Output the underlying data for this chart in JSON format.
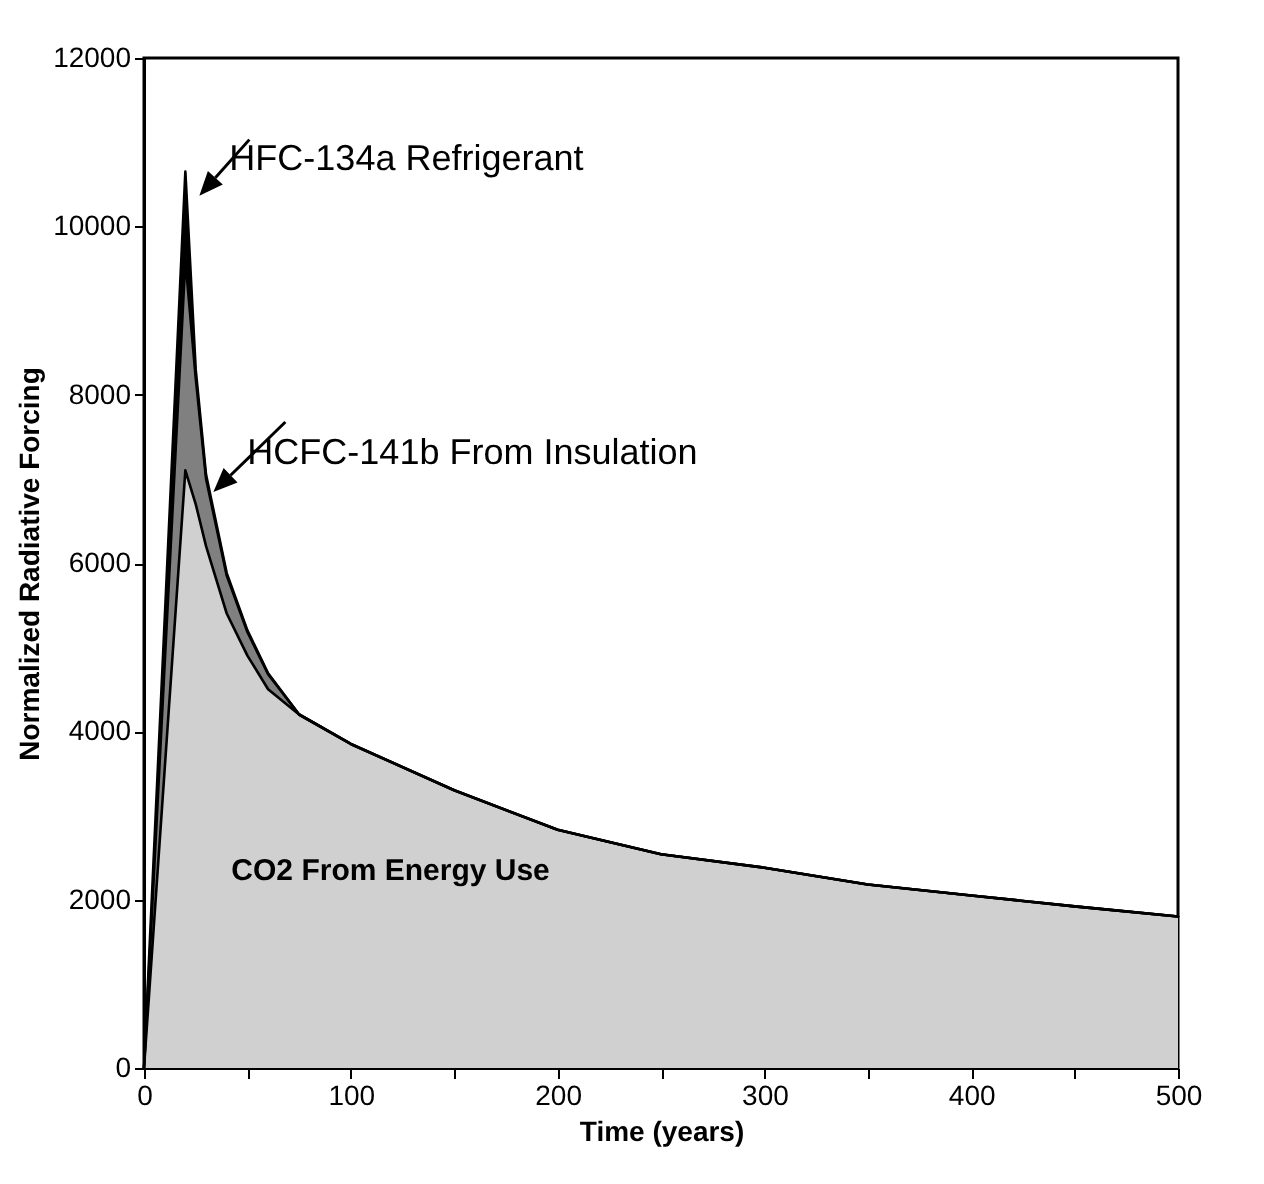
{
  "chart_data": {
    "type": "area",
    "stacked": true,
    "xlabel": "Time (years)",
    "ylabel": "Normalized Radiative Forcing",
    "x": [
      0,
      20,
      25,
      30,
      40,
      50,
      60,
      75,
      100,
      150,
      200,
      250,
      300,
      350,
      400,
      450,
      500
    ],
    "series": [
      {
        "name": "CO2 From Energy Use",
        "color": "#d0d0d0",
        "values": [
          0,
          7100,
          6700,
          6200,
          5400,
          4900,
          4500,
          4200,
          3850,
          3300,
          2830,
          2540,
          2380,
          2180,
          2050,
          1920,
          1800
        ]
      },
      {
        "name": "HCFC-141b From Insulation",
        "color": "#808080",
        "values": [
          0,
          2500,
          1500,
          800,
          450,
          280,
          180,
          0,
          0,
          0,
          0,
          0,
          0,
          0,
          0,
          0,
          0
        ]
      },
      {
        "name": "HFC-134a Refrigerant",
        "color": "#000000",
        "values": [
          0,
          1050,
          100,
          50,
          30,
          20,
          10,
          0,
          0,
          0,
          0,
          0,
          0,
          0,
          0,
          0,
          0
        ]
      }
    ],
    "xlim": [
      0,
      500
    ],
    "xticks": [
      0,
      {
        "value": 50,
        "label": null
      },
      100,
      {
        "value": 150,
        "label": null
      },
      200,
      {
        "value": 250,
        "label": null
      },
      300,
      {
        "value": 350,
        "label": null
      },
      400,
      {
        "value": 450,
        "label": null
      },
      500
    ],
    "ylim": [
      0,
      12000
    ],
    "yticks": [
      0,
      2000,
      4000,
      6000,
      8000,
      10000,
      12000
    ],
    "grid": false,
    "legend": false
  }
}
